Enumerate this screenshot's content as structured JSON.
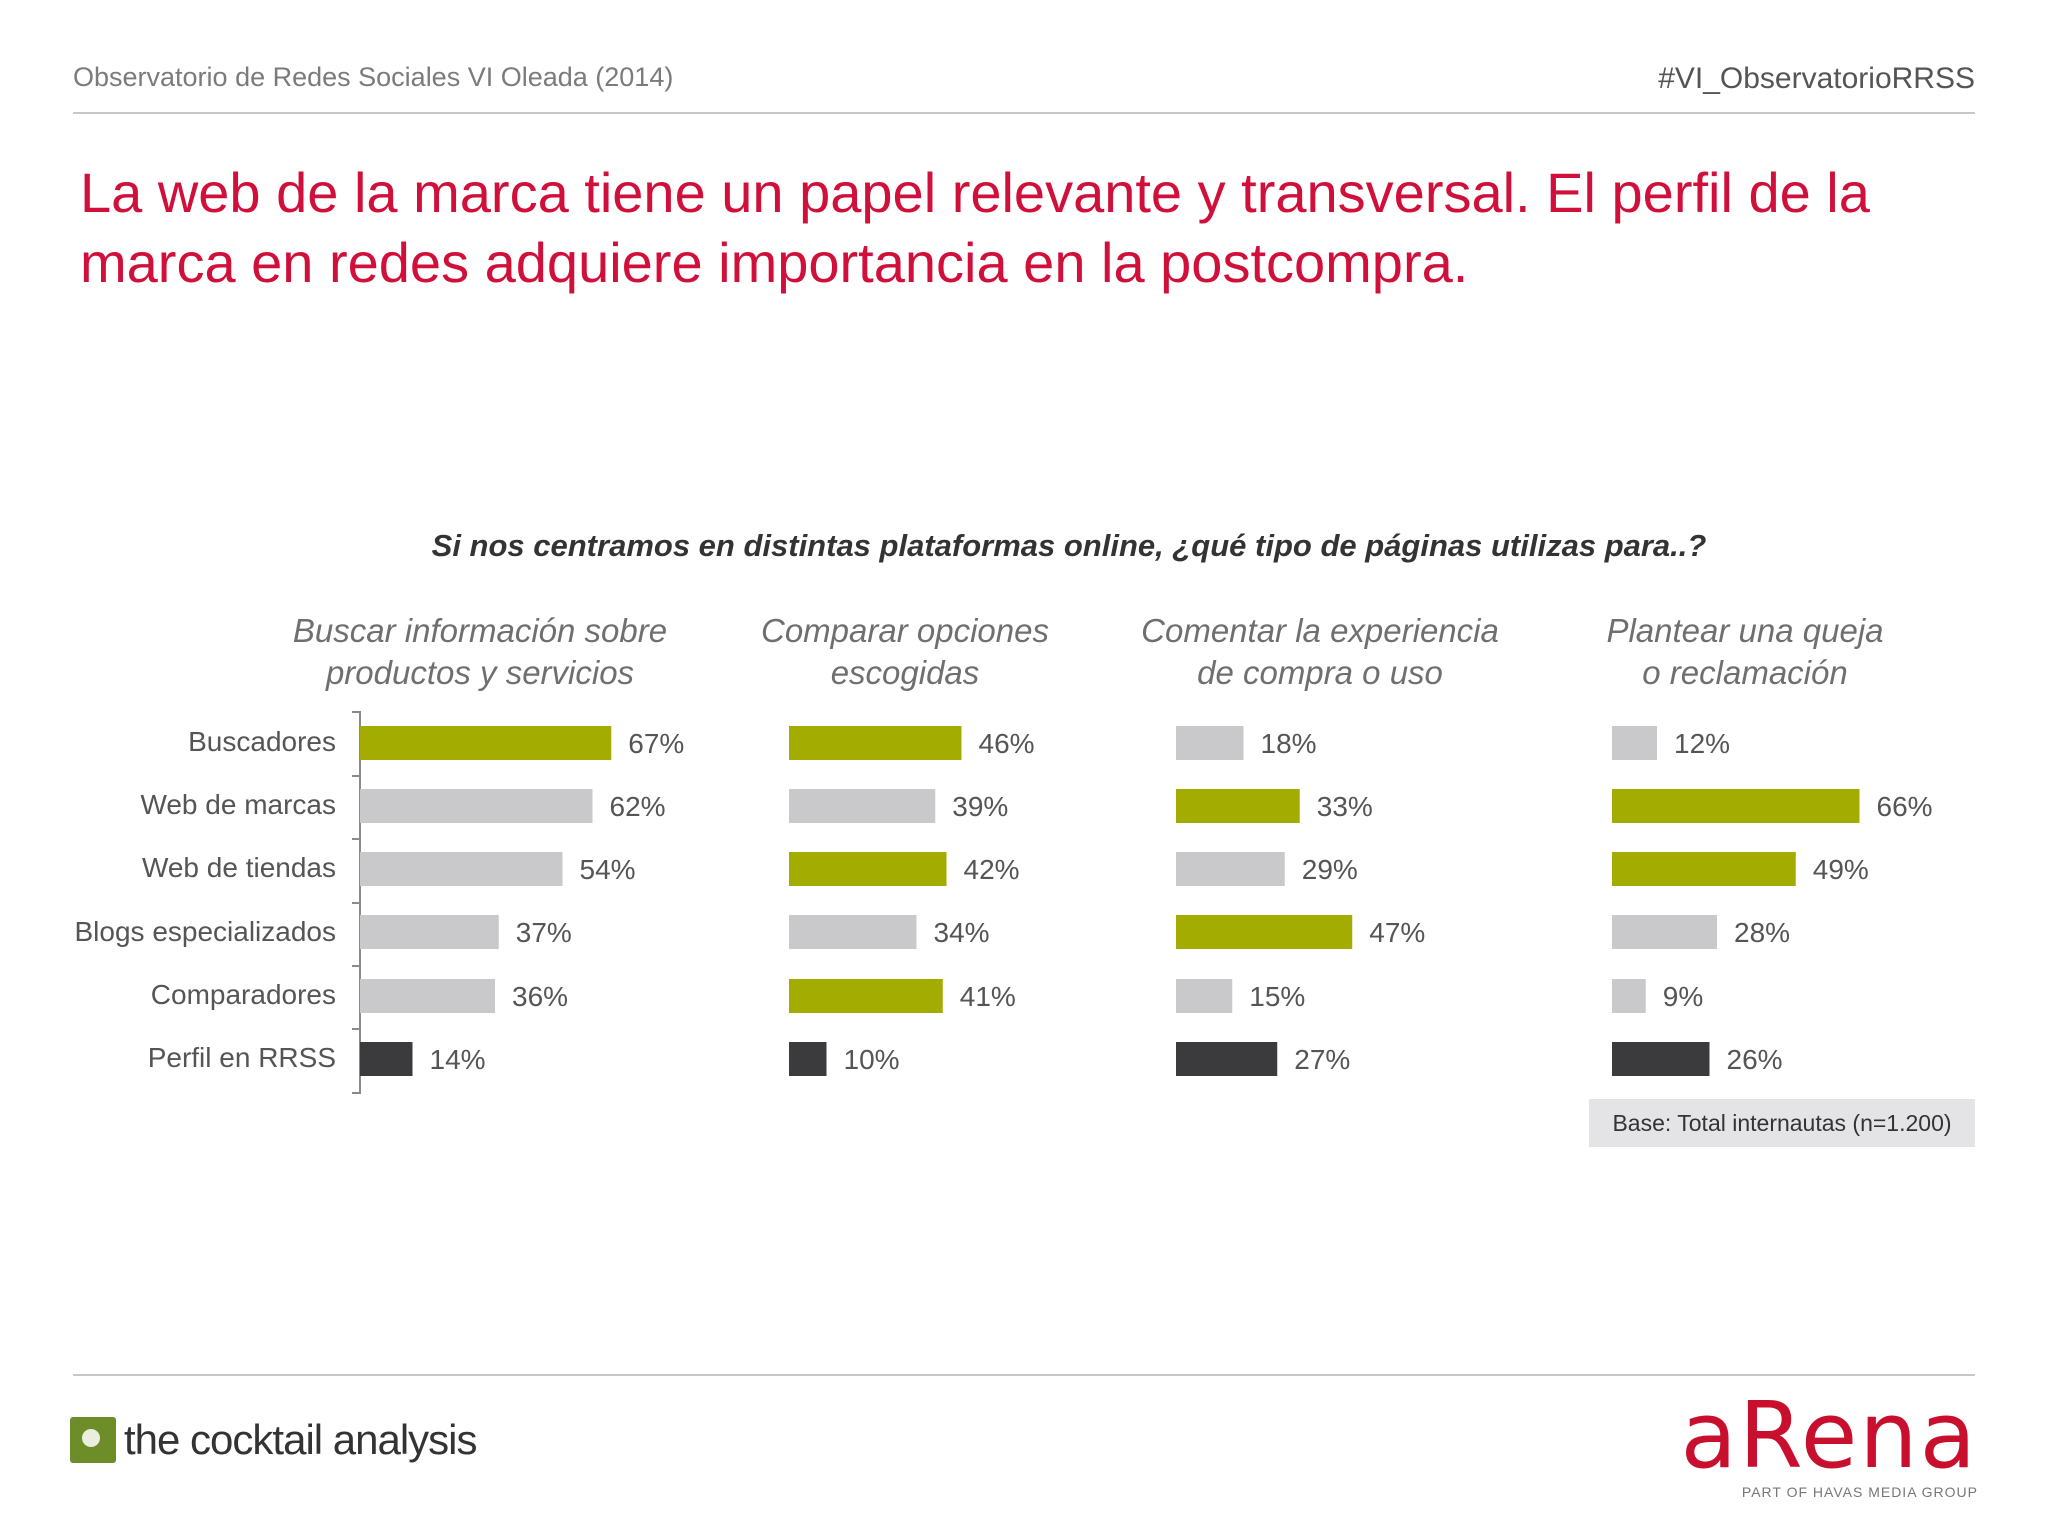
{
  "header": {
    "left": "Observatorio de Redes Sociales VI Oleada (2014)",
    "right": "#VI_ObservatorioRRSS"
  },
  "title": "La web de la marca tiene un papel relevante y transversal. El perfil de la marca en redes adquiere importancia en la postcompra.",
  "chart_data": {
    "type": "bar",
    "orientation": "horizontal",
    "title": "Si nos centramos en distintas plataformas online, ¿qué tipo de páginas utilizas para..?",
    "categories": [
      "Buscadores",
      "Web de marcas",
      "Web de tiendas",
      "Blogs especializados",
      "Comparadores",
      "Perfil en RRSS"
    ],
    "unit": "%",
    "series": [
      {
        "name": "Buscar información sobre productos y servicios",
        "values": [
          67,
          62,
          54,
          37,
          36,
          14
        ],
        "colors": [
          "#a3ac00",
          "#c9c8ca",
          "#c9c8ca",
          "#c9c8ca",
          "#c9c8ca",
          "#3b3a3d"
        ]
      },
      {
        "name": "Comparar opciones escogidas",
        "values": [
          46,
          39,
          42,
          34,
          41,
          10
        ],
        "colors": [
          "#a3ac00",
          "#c9c8ca",
          "#a3ac00",
          "#c9c8ca",
          "#a3ac00",
          "#3b3a3d"
        ]
      },
      {
        "name": "Comentar la experiencia de compra o uso",
        "values": [
          18,
          33,
          29,
          47,
          15,
          27
        ],
        "colors": [
          "#c9c8ca",
          "#a3ac00",
          "#c9c8ca",
          "#a3ac00",
          "#c9c8ca",
          "#3b3a3d"
        ]
      },
      {
        "name": "Plantear una queja o reclamación",
        "values": [
          12,
          66,
          49,
          28,
          9,
          26
        ],
        "colors": [
          "#c9c8ca",
          "#a3ac00",
          "#a3ac00",
          "#c9c8ca",
          "#c9c8ca",
          "#3b3a3d"
        ]
      }
    ],
    "panel_titles": [
      [
        "Buscar información sobre",
        "productos y servicios"
      ],
      [
        "Comparar opciones",
        "escogidas"
      ],
      [
        "Comentar la experiencia",
        "de compra o uso"
      ],
      [
        "Plantear una queja",
        "o reclamación"
      ]
    ],
    "note": "Base: Total internautas (n=1.200)"
  },
  "logos": {
    "left": "the cocktail analysis",
    "right": "aRena",
    "right_sub": "PART OF HAVAS MEDIA GROUP"
  }
}
